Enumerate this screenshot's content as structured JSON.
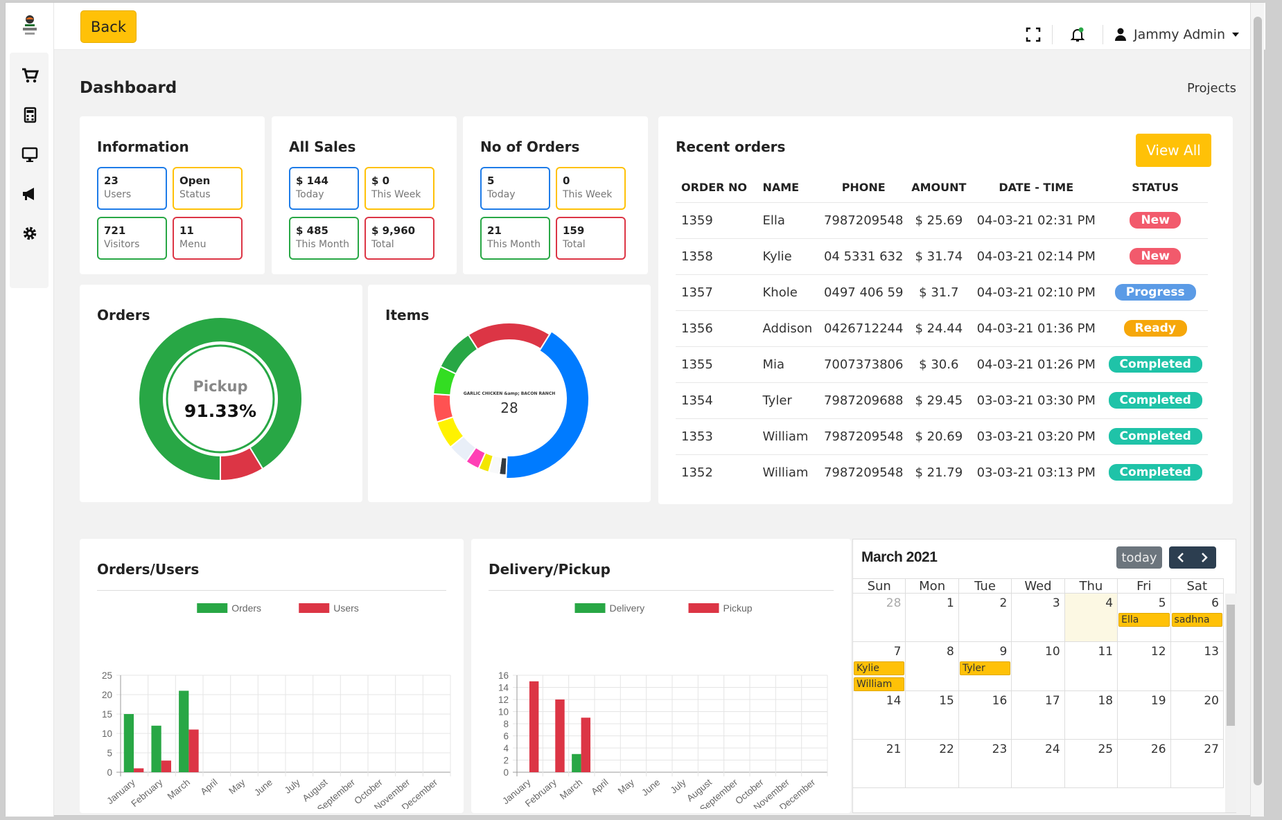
{
  "topbar": {
    "back_label": "Back",
    "user_name": "Jammy Admin"
  },
  "page": {
    "title": "Dashboard",
    "breadcrumb": "Projects"
  },
  "info_card": {
    "title": "Information",
    "items": [
      {
        "value": "23",
        "label": "Users"
      },
      {
        "value": "Open",
        "label": "Status"
      },
      {
        "value": "721",
        "label": "Visitors"
      },
      {
        "value": "11",
        "label": "Menu"
      }
    ]
  },
  "sales_card": {
    "title": "All Sales",
    "items": [
      {
        "value": "$ 144",
        "label": "Today"
      },
      {
        "value": "$ 0",
        "label": "This Week"
      },
      {
        "value": "$ 485",
        "label": "This Month"
      },
      {
        "value": "$ 9,960",
        "label": "Total"
      }
    ]
  },
  "orders_count_card": {
    "title": "No of Orders",
    "items": [
      {
        "value": "5",
        "label": "Today"
      },
      {
        "value": "0",
        "label": "This Week"
      },
      {
        "value": "21",
        "label": "This Month"
      },
      {
        "value": "159",
        "label": "Total"
      }
    ]
  },
  "orders_donut": {
    "title": "Orders",
    "center_label": "Pickup",
    "center_value": "91.33%",
    "pickup_fraction": 0.9133,
    "colors": [
      "#28a745",
      "#dc3545"
    ]
  },
  "items_donut": {
    "title": "Items",
    "center_label": "GARLIC CHICKEN &amp; BACON RANCH",
    "center_value": "28",
    "segments": [
      {
        "value": 28,
        "color": "#007bff"
      },
      {
        "value": 1,
        "color": "#343a40"
      },
      {
        "value": 1.5,
        "color": "#f8f9fa"
      },
      {
        "value": 1.5,
        "color": "#f3e600"
      },
      {
        "value": 2,
        "color": "#ff3fb5"
      },
      {
        "value": 3,
        "color": "#e9eff8"
      },
      {
        "value": 4,
        "color": "#fff200"
      },
      {
        "value": 4,
        "color": "#ff5252"
      },
      {
        "value": 4,
        "color": "#33dd22"
      },
      {
        "value": 6,
        "color": "#28a745"
      },
      {
        "value": 12,
        "color": "#dc3545"
      }
    ]
  },
  "recent_orders": {
    "title": "Recent orders",
    "view_all_label": "View All",
    "columns": [
      "ORDER NO",
      "NAME",
      "PHONE",
      "AMOUNT",
      "DATE - TIME",
      "STATUS"
    ],
    "rows": [
      {
        "order_no": "1359",
        "name": "Ella",
        "phone": "7987209548",
        "amount": "$ 25.69",
        "datetime": "04-03-21 02:31 PM",
        "status": "New"
      },
      {
        "order_no": "1358",
        "name": "Kylie",
        "phone": "04 5331 632",
        "amount": "$ 31.74",
        "datetime": "04-03-21 02:14 PM",
        "status": "New"
      },
      {
        "order_no": "1357",
        "name": "Khole",
        "phone": "0497 406 59",
        "amount": "$ 31.7",
        "datetime": "04-03-21 02:10 PM",
        "status": "Progress"
      },
      {
        "order_no": "1356",
        "name": "Addison",
        "phone": "0426712244",
        "amount": "$ 24.44",
        "datetime": "04-03-21 01:36 PM",
        "status": "Ready"
      },
      {
        "order_no": "1355",
        "name": "Mia",
        "phone": "7007373806",
        "amount": "$ 30.6",
        "datetime": "04-03-21 01:26 PM",
        "status": "Completed"
      },
      {
        "order_no": "1354",
        "name": "Tyler",
        "phone": "7987209688",
        "amount": "$ 29.45",
        "datetime": "03-03-21 03:30 PM",
        "status": "Completed"
      },
      {
        "order_no": "1353",
        "name": "William",
        "phone": "7987209548",
        "amount": "$ 20.69",
        "datetime": "03-03-21 03:20 PM",
        "status": "Completed"
      },
      {
        "order_no": "1352",
        "name": "William",
        "phone": "7987209548",
        "amount": "$ 21.79",
        "datetime": "03-03-21 03:13 PM",
        "status": "Completed"
      }
    ],
    "status_colors": {
      "New": "#f25a6c",
      "Progress": "#5b9be6",
      "Ready": "#f6a70a",
      "Completed": "#1fc3a8"
    }
  },
  "chart_data": [
    {
      "type": "bar",
      "title": "Orders/Users",
      "categories": [
        "January",
        "February",
        "March",
        "April",
        "May",
        "June",
        "July",
        "August",
        "September",
        "October",
        "November",
        "December"
      ],
      "series": [
        {
          "name": "Orders",
          "color": "#28a745",
          "values": [
            15,
            12,
            21,
            0,
            0,
            0,
            0,
            0,
            0,
            0,
            0,
            0
          ]
        },
        {
          "name": "Users",
          "color": "#dc3545",
          "values": [
            1,
            3,
            11,
            0,
            0,
            0,
            0,
            0,
            0,
            0,
            0,
            0
          ]
        }
      ],
      "ylim": [
        0,
        25
      ],
      "yticks": [
        0,
        5,
        10,
        15,
        20,
        25
      ],
      "grid": true,
      "legend": "top-center"
    },
    {
      "type": "bar",
      "title": "Delivery/Pickup",
      "categories": [
        "January",
        "February",
        "March",
        "April",
        "May",
        "June",
        "July",
        "August",
        "September",
        "October",
        "November",
        "December"
      ],
      "series": [
        {
          "name": "Delivery",
          "color": "#28a745",
          "values": [
            0,
            0,
            3,
            0,
            0,
            0,
            0,
            0,
            0,
            0,
            0,
            0
          ]
        },
        {
          "name": "Pickup",
          "color": "#dc3545",
          "values": [
            15,
            12,
            9,
            0,
            0,
            0,
            0,
            0,
            0,
            0,
            0,
            0
          ]
        }
      ],
      "ylim": [
        0,
        16
      ],
      "yticks": [
        0,
        2,
        4,
        6,
        8,
        10,
        12,
        14,
        16
      ],
      "grid": true,
      "legend": "top-center"
    }
  ],
  "calendar": {
    "title": "March 2021",
    "today_label": "today",
    "prev_icon": "chevron-left-icon",
    "next_icon": "chevron-right-icon",
    "weekdays": [
      "Sun",
      "Mon",
      "Tue",
      "Wed",
      "Thu",
      "Fri",
      "Sat"
    ],
    "weeks": [
      [
        {
          "d": "28",
          "other": true
        },
        {
          "d": "1"
        },
        {
          "d": "2"
        },
        {
          "d": "3"
        },
        {
          "d": "4",
          "today": true
        },
        {
          "d": "5",
          "events": [
            "Ella"
          ]
        },
        {
          "d": "6",
          "events": [
            "sadhna"
          ]
        }
      ],
      [
        {
          "d": "7",
          "events": [
            "Kylie",
            "William"
          ]
        },
        {
          "d": "8"
        },
        {
          "d": "9",
          "events": [
            "Tyler"
          ]
        },
        {
          "d": "10"
        },
        {
          "d": "11"
        },
        {
          "d": "12"
        },
        {
          "d": "13"
        }
      ],
      [
        {
          "d": "14"
        },
        {
          "d": "15"
        },
        {
          "d": "16"
        },
        {
          "d": "17"
        },
        {
          "d": "18"
        },
        {
          "d": "19"
        },
        {
          "d": "20"
        }
      ],
      [
        {
          "d": "21"
        },
        {
          "d": "22"
        },
        {
          "d": "23"
        },
        {
          "d": "24"
        },
        {
          "d": "25"
        },
        {
          "d": "26"
        },
        {
          "d": "27"
        }
      ]
    ]
  }
}
